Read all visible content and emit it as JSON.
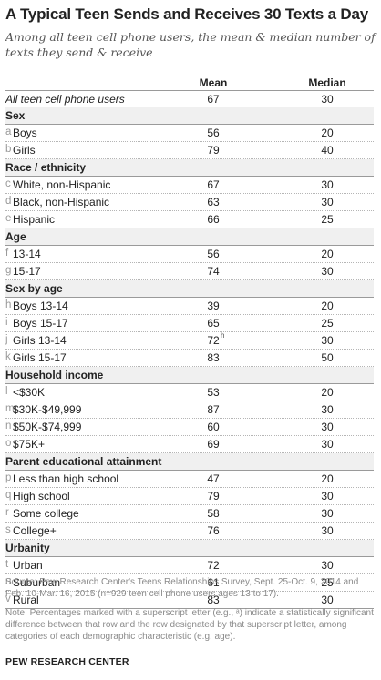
{
  "chart_data": {
    "type": "table",
    "title": "A Typical Teen Sends and Receives 30 Texts a Day",
    "subtitle": "Among all teen cell phone users, the mean & median number of texts they send & receive",
    "columns": [
      "Mean",
      "Median"
    ],
    "rows": [
      {
        "kind": "row",
        "style": "all",
        "letter": "",
        "label": "All teen cell phone users",
        "mean": "67",
        "median": "30"
      },
      {
        "kind": "section",
        "label": "Sex"
      },
      {
        "kind": "row",
        "letter": "a",
        "label": "Boys",
        "mean": "56",
        "median": "20"
      },
      {
        "kind": "row",
        "letter": "b",
        "label": "Girls",
        "mean": "79",
        "median": "40"
      },
      {
        "kind": "section",
        "label": "Race / ethnicity"
      },
      {
        "kind": "row",
        "letter": "c",
        "label": "White, non-Hispanic",
        "mean": "67",
        "median": "30"
      },
      {
        "kind": "row",
        "letter": "d",
        "label": "Black, non-Hispanic",
        "mean": "63",
        "median": "30"
      },
      {
        "kind": "row",
        "letter": "e",
        "label": "Hispanic",
        "mean": "66",
        "median": "25"
      },
      {
        "kind": "section",
        "label": "Age"
      },
      {
        "kind": "row",
        "letter": "f",
        "label": "13-14",
        "mean": "56",
        "median": "20"
      },
      {
        "kind": "row",
        "letter": "g",
        "label": "15-17",
        "mean": "74",
        "median": "30"
      },
      {
        "kind": "section",
        "label": "Sex by age"
      },
      {
        "kind": "row",
        "letter": "h",
        "label": "Boys 13-14",
        "mean": "39",
        "median": "20"
      },
      {
        "kind": "row",
        "letter": "i",
        "label": "Boys 15-17",
        "mean": "65",
        "median": "25"
      },
      {
        "kind": "row",
        "letter": "j",
        "label": "Girls 13-14",
        "mean": "72",
        "sup": "h",
        "median": "30"
      },
      {
        "kind": "row",
        "letter": "k",
        "label": "Girls 15-17",
        "mean": "83",
        "median": "50"
      },
      {
        "kind": "section",
        "label": "Household income"
      },
      {
        "kind": "row",
        "letter": "l",
        "label": "<$30K",
        "mean": "53",
        "median": "20"
      },
      {
        "kind": "row",
        "letter": "m",
        "label": "$30K-$49,999",
        "mean": "87",
        "median": "30"
      },
      {
        "kind": "row",
        "letter": "n",
        "label": "$50K-$74,999",
        "mean": "60",
        "median": "30"
      },
      {
        "kind": "row",
        "letter": "o",
        "label": "$75K+",
        "mean": "69",
        "median": "30"
      },
      {
        "kind": "section",
        "label": "Parent educational attainment"
      },
      {
        "kind": "row",
        "letter": "p",
        "label": "Less than high school",
        "mean": "47",
        "median": "20"
      },
      {
        "kind": "row",
        "letter": "q",
        "label": "High school",
        "mean": "79",
        "median": "30"
      },
      {
        "kind": "row",
        "letter": "r",
        "label": "Some college",
        "mean": "58",
        "median": "30"
      },
      {
        "kind": "row",
        "letter": "s",
        "label": "College+",
        "mean": "76",
        "median": "30"
      },
      {
        "kind": "section",
        "label": "Urbanity"
      },
      {
        "kind": "row",
        "letter": "t",
        "label": "Urban",
        "mean": "72",
        "median": "30"
      },
      {
        "kind": "row",
        "letter": "u",
        "label": "Suburban",
        "mean": "61",
        "median": "25"
      },
      {
        "kind": "row",
        "letter": "v",
        "label": "Rural",
        "mean": "83",
        "median": "30"
      }
    ]
  },
  "footer": {
    "source": "Source:  Pew Research Center's Teens Relationships Survey, Sept. 25-Oct. 9, 2014 and Feb. 10-Mar. 16, 2015 (n=929 teen cell phone users ages 13 to 17).",
    "note": "Note: Percentages marked with a superscript letter (e.g., ᵃ) indicate a statistically significant difference between that row and the row designated by that superscript letter, among categories of each demographic characteristic (e.g. age).",
    "brand": "PEW RESEARCH CENTER"
  }
}
